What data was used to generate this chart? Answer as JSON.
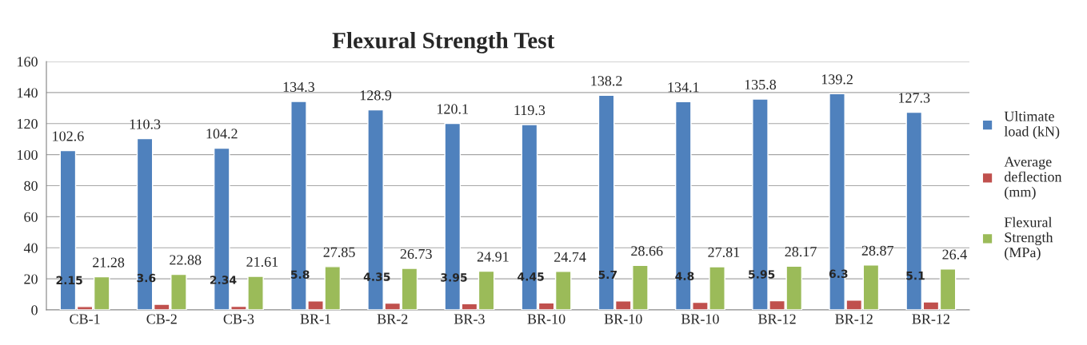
{
  "chart_data": {
    "type": "bar",
    "title": "Flexural Strength Test",
    "categories": [
      "CB-1",
      "CB-2",
      "CB-3",
      "BR-1",
      "BR-2",
      "BR-3",
      "BR-10",
      "BR-10",
      "BR-10",
      "BR-12",
      "BR-12",
      "BR-12"
    ],
    "series": [
      {
        "name": "Ultimate load (kN)",
        "color": "#4f81bd",
        "values": [
          102.6,
          110.3,
          104.2,
          134.3,
          128.9,
          120.1,
          119.3,
          138.2,
          134.1,
          135.8,
          139.2,
          127.3
        ]
      },
      {
        "name": "Average deflection (mm)",
        "color": "#c0504d",
        "values": [
          2.15,
          3.6,
          2.34,
          5.8,
          4.35,
          3.95,
          4.45,
          5.7,
          4.8,
          5.95,
          6.3,
          5.1
        ]
      },
      {
        "name": "Flexural Strength (MPa)",
        "color": "#9bbb59",
        "values": [
          21.28,
          22.88,
          21.61,
          27.85,
          26.73,
          24.91,
          24.74,
          28.66,
          27.81,
          28.17,
          28.87,
          26.4
        ]
      }
    ],
    "ylim": [
      0,
      160
    ],
    "yticks": [
      0,
      20,
      40,
      60,
      80,
      100,
      120,
      140,
      160
    ],
    "grid": "y",
    "legend": "right",
    "data_labels": true
  }
}
